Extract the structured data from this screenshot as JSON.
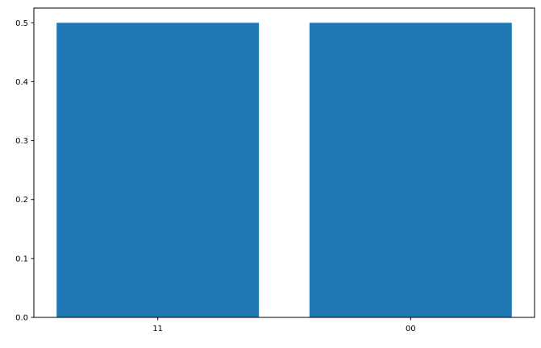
{
  "chart_data": {
    "type": "bar",
    "categories": [
      "11",
      "00"
    ],
    "values": [
      0.5,
      0.5
    ],
    "bar_color": "#1f77b4",
    "title": "",
    "xlabel": "",
    "ylabel": "",
    "ylim": [
      0,
      0.525
    ],
    "yticks": [
      0.0,
      0.1,
      0.2,
      0.3,
      0.4,
      0.5
    ],
    "ytick_labels": [
      "0.0",
      "0.1",
      "0.2",
      "0.3",
      "0.4",
      "0.5"
    ],
    "grid": false
  }
}
